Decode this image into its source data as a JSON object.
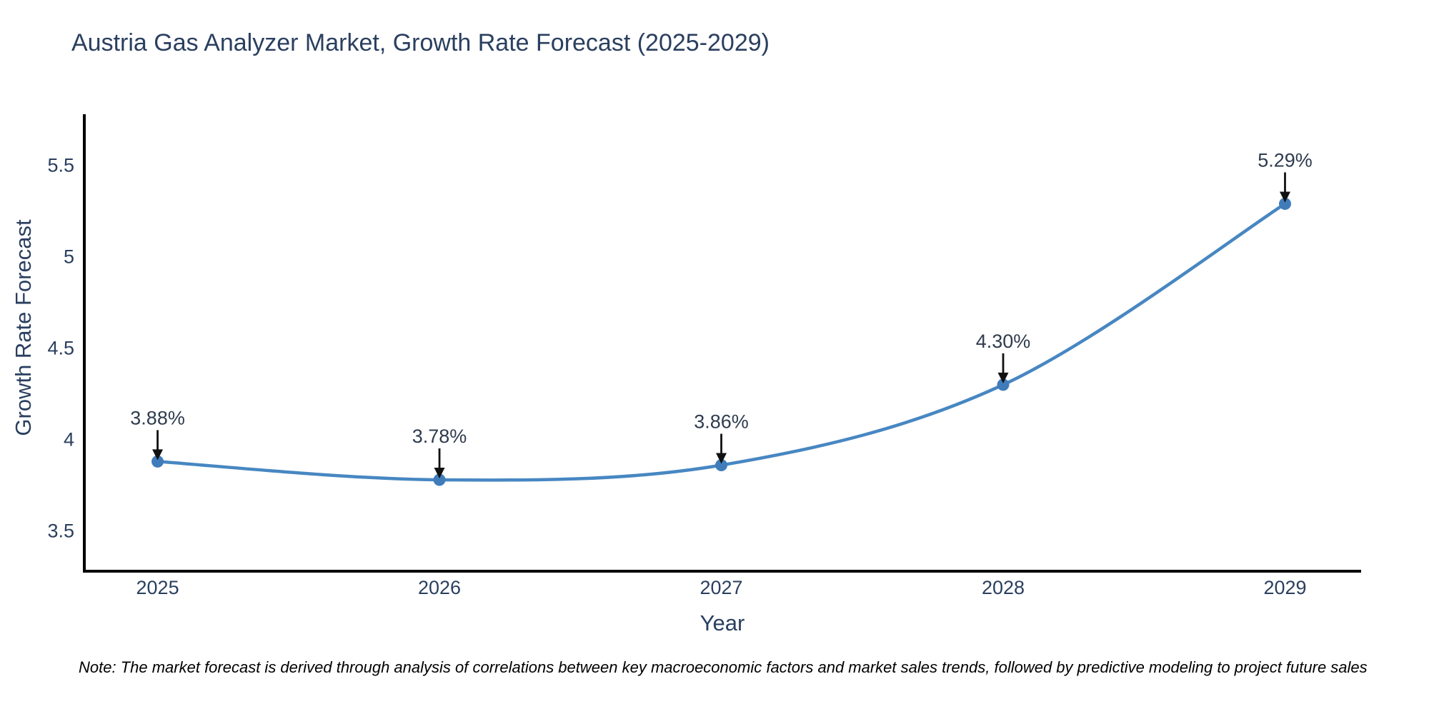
{
  "header": {
    "title": "Austria Gas Analyzer Market, Growth Rate Forecast (2025-2029)"
  },
  "chart_data": {
    "type": "line",
    "title": "Austria Gas Analyzer Market, Growth Rate Forecast (2025-2029)",
    "xlabel": "Year",
    "ylabel": "Growth Rate Forecast",
    "x": [
      2025,
      2026,
      2027,
      2028,
      2029
    ],
    "categories": [
      "2025",
      "2026",
      "2027",
      "2028",
      "2029"
    ],
    "values": [
      3.88,
      3.78,
      3.86,
      4.3,
      5.29
    ],
    "point_labels": [
      "3.88%",
      "3.78%",
      "3.86%",
      "4.30%",
      "5.29%"
    ],
    "yticks": [
      3.5,
      4,
      4.5,
      5,
      5.5
    ],
    "ytick_labels": [
      "3.5",
      "4",
      "4.5",
      "5",
      "5.5"
    ],
    "xlim": [
      2024.74,
      2029.27
    ],
    "ylim": [
      3.28,
      5.78
    ],
    "grid": false,
    "legend": "none",
    "line_shape": "spline",
    "colors": {
      "line": "#4787c2",
      "marker": "#3f7cb9",
      "axis": "#000000",
      "tick_text": "#2a3f5f",
      "annotation_text": "#2f3c4e",
      "annotation_arrow": "#111111"
    }
  },
  "footer": {
    "note": "Note: The market forecast is derived through analysis of correlations between key macroeconomic factors and market sales trends, followed by predictive modeling to project future sales"
  }
}
